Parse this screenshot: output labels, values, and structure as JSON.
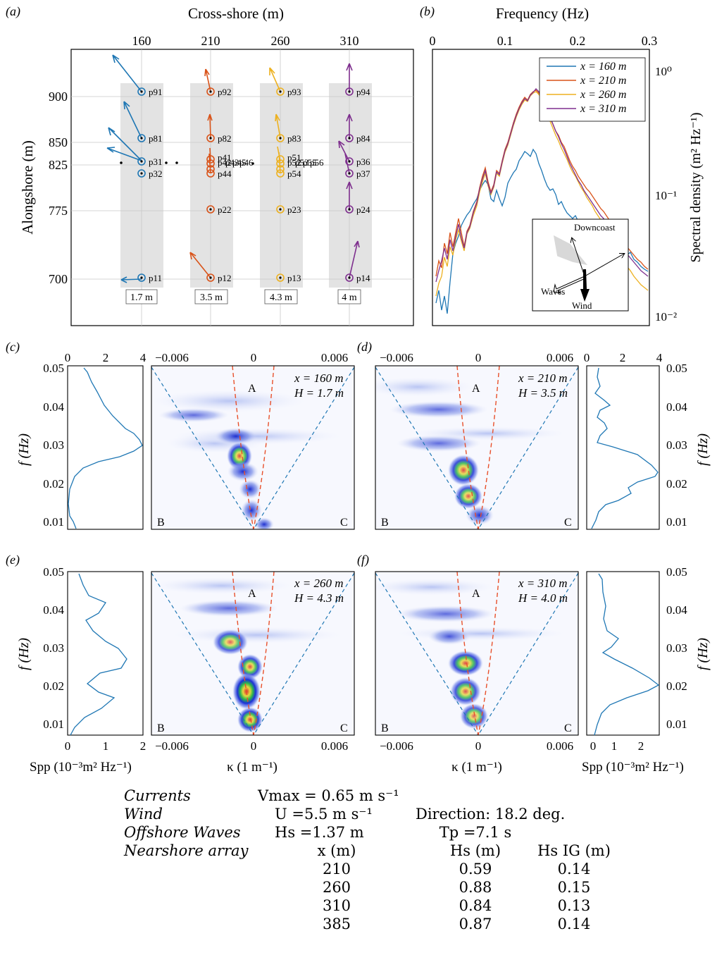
{
  "panel_a": {
    "tag": "(a)",
    "xlabel": "Cross-shore (m)",
    "ylabel": "Alongshore (m)",
    "xticks": [
      "160",
      "210",
      "260",
      "310"
    ],
    "yticks": [
      "900",
      "850",
      "825",
      "775",
      "700"
    ],
    "depth_labels": [
      "1.7 m",
      "3.5 m",
      "4.3 m",
      "4 m"
    ],
    "sensors": [
      "p91",
      "p81",
      "p31",
      "p32",
      "p11",
      "p92",
      "p82",
      "p41",
      "p42",
      "p43",
      "p44",
      "p45",
      "p46",
      "p22",
      "p12",
      "p93",
      "p83",
      "p51",
      "p52",
      "p53",
      "p54",
      "p55",
      "p56",
      "p23",
      "p13",
      "p94",
      "p84",
      "p36",
      "p37",
      "p24",
      "p14"
    ],
    "column_colors": [
      "#1f77b4",
      "#d95319",
      "#edb120",
      "#7e2f8e"
    ]
  },
  "panel_b": {
    "tag": "(b)",
    "xlabel": "Frequency (Hz)",
    "ylabel": "Spectral density (m² Hz⁻¹)",
    "xticks": [
      "0",
      "0.1",
      "0.2",
      "0.3"
    ],
    "yticks": [
      "10⁰",
      "10⁻¹",
      "10⁻²"
    ],
    "legend": [
      "x = 160 m",
      "x = 210 m",
      "x = 260 m",
      "x = 310 m"
    ],
    "inset": {
      "downcoast": "Downcoast",
      "waves": "Waves",
      "wind": "Wind"
    }
  },
  "panels_fk": [
    {
      "tag": "(c)",
      "x_label": "x = 160 m",
      "h_label": "H = 1.7 m"
    },
    {
      "tag": "(d)",
      "x_label": "x = 210 m",
      "h_label": "H = 3.5 m"
    },
    {
      "tag": "(e)",
      "x_label": "x = 260 m",
      "h_label": "H = 4.3 m"
    },
    {
      "tag": "(f)",
      "x_label": "x = 310 m",
      "h_label": "H = 4.0 m"
    }
  ],
  "fk_common": {
    "ylabel": "f (Hz)",
    "yticks": [
      "0.05",
      "0.04",
      "0.03",
      "0.02",
      "0.01"
    ],
    "kticks": [
      "−0.006",
      "0",
      "0.006"
    ],
    "kappa_label": "κ (1 m⁻¹)",
    "spp_label": "Spp (10⁻³m² Hz⁻¹)",
    "spp_ticks_top": [
      "0",
      "2",
      "4"
    ],
    "spp_ticks_e": [
      "0",
      "1",
      "2"
    ],
    "spp_ticks_f": [
      "0",
      "1",
      "2"
    ],
    "region_labels": [
      "A",
      "B",
      "C"
    ]
  },
  "params": {
    "currents_label": "Currents",
    "currents_value": "Vmax = 0.65 m s⁻¹",
    "wind_label": "Wind",
    "wind_value": "U =5.5 m s⁻¹",
    "wind_direction": "Direction: 18.2 deg.",
    "waves_label": "Offshore Waves",
    "waves_hs": "Hs =1.37 m",
    "waves_tp": "Tp =7.1 s",
    "array_label": "Nearshore array",
    "col_x": "x (m)",
    "col_hs": "Hs (m)",
    "col_hsig": "Hs IG (m)",
    "rows": [
      {
        "x": "210",
        "hs": "0.59",
        "hsig": "0.14"
      },
      {
        "x": "260",
        "hs": "0.88",
        "hsig": "0.15"
      },
      {
        "x": "310",
        "hs": "0.84",
        "hsig": "0.13"
      },
      {
        "x": "385",
        "hs": "0.87",
        "hsig": "0.14"
      }
    ]
  }
}
